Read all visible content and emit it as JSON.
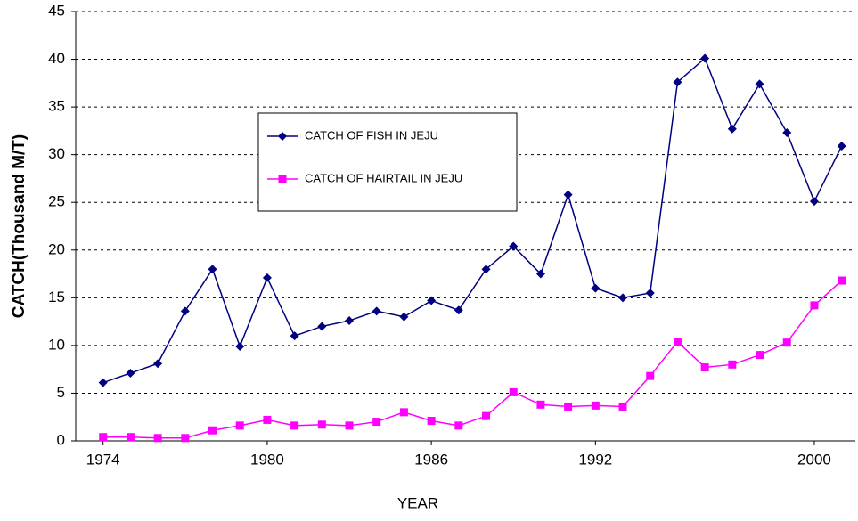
{
  "chart_data": {
    "type": "line",
    "x_label": "YEAR",
    "y_label": "CATCH(Thousand M/T)",
    "x": [
      1974,
      1975,
      1976,
      1977,
      1978,
      1979,
      1980,
      1981,
      1982,
      1983,
      1984,
      1985,
      1986,
      1987,
      1988,
      1989,
      1990,
      1991,
      1992,
      1993,
      1994,
      1995,
      1996,
      1997,
      1998,
      1999,
      2000,
      2001
    ],
    "series": [
      {
        "name": "CATCH OF FISH IN JEJU",
        "color": "#000080",
        "marker": "diamond",
        "values": [
          6.1,
          7.1,
          8.1,
          13.6,
          18,
          9.9,
          17.1,
          11,
          12,
          12.6,
          13.6,
          13,
          14.7,
          13.7,
          18,
          20.4,
          17.5,
          25.8,
          16,
          15,
          15.5,
          37.6,
          40.1,
          32.7,
          37.4,
          32.3,
          25.1,
          30.9
        ]
      },
      {
        "name": "CATCH OF HAIRTAIL IN JEJU",
        "color": "#ff00ff",
        "marker": "square",
        "values": [
          0.4,
          0.4,
          0.3,
          0.3,
          1.1,
          1.6,
          2.2,
          1.6,
          1.7,
          1.6,
          2,
          3,
          2.1,
          1.6,
          2.6,
          5.1,
          3.8,
          3.6,
          3.7,
          3.6,
          6.8,
          10.4,
          7.7,
          8,
          9,
          10.3,
          14.2,
          16.8
        ]
      }
    ],
    "xlim": [
      1973,
      2001.5
    ],
    "xticks": [
      1974,
      1980,
      1986,
      1992,
      2000
    ],
    "ylim": [
      0,
      45
    ],
    "yticks": [
      0,
      5,
      10,
      15,
      20,
      25,
      30,
      35,
      40,
      45
    ],
    "grid": true,
    "legend": "upper-center"
  }
}
